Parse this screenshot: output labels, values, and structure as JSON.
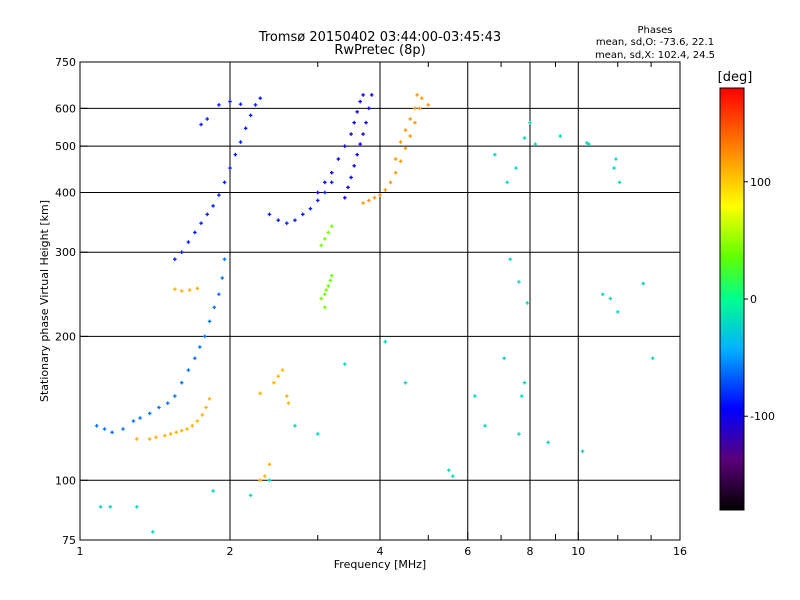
{
  "chart_data": {
    "type": "scatter",
    "title": "Tromsø 20150402 03:44:00-03:45:43",
    "subtitle": "RwPretec (8p)",
    "stats": {
      "heading": "Phases",
      "line1": "mean, sd,O: -73.6, 22.1",
      "line2": "mean, sd,X: 102.4, 24.5"
    },
    "xlabel": "Frequency [MHz]",
    "ylabel": "Stationary phase Virtual Height [km]",
    "x_scale": "log",
    "y_scale": "log",
    "xlim": [
      1,
      16
    ],
    "ylim": [
      75,
      750
    ],
    "grid": true,
    "x_ticks": [
      1,
      2,
      4,
      6,
      8,
      10,
      16
    ],
    "x_tick_labels": [
      "1",
      "2",
      "4",
      "6",
      "8",
      "10",
      "16"
    ],
    "x_minor_ticks": [
      3,
      5,
      7,
      9,
      12,
      14
    ],
    "y_ticks": [
      75,
      100,
      200,
      300,
      400,
      500,
      600,
      750
    ],
    "y_tick_labels": [
      "75",
      "100",
      "200",
      "300",
      "400",
      "500",
      "600",
      "750"
    ],
    "colorbar": {
      "label": "[deg]",
      "range": [
        -180,
        180
      ],
      "ticks": [
        100,
        0,
        -100
      ],
      "tick_labels": [
        "100",
        "0",
        "-100"
      ]
    },
    "series": [
      {
        "trace": "low-E cusp, X (orange)",
        "points": [
          [
            1.42,
            123
          ],
          [
            1.48,
            124
          ],
          [
            1.52,
            125
          ],
          [
            1.56,
            126
          ],
          [
            1.6,
            127
          ],
          [
            1.64,
            128
          ],
          [
            1.68,
            130
          ],
          [
            1.72,
            133
          ],
          [
            1.76,
            137
          ],
          [
            1.79,
            142
          ],
          [
            1.82,
            148
          ],
          [
            1.55,
            251
          ],
          [
            1.6,
            249
          ],
          [
            1.66,
            250
          ],
          [
            1.72,
            252
          ],
          [
            2.35,
            102
          ],
          [
            2.4,
            108
          ],
          [
            2.45,
            160
          ],
          [
            2.5,
            165
          ],
          [
            2.55,
            170
          ],
          [
            2.6,
            150
          ],
          [
            2.62,
            145
          ],
          [
            2.3,
            100
          ],
          [
            2.3,
            152
          ],
          [
            1.3,
            122
          ],
          [
            1.38,
            122
          ]
        ],
        "phase": 110
      },
      {
        "trace": "low-E cusp, O (cyan)",
        "points": [
          [
            1.08,
            130
          ],
          [
            1.12,
            128
          ],
          [
            1.16,
            126
          ],
          [
            1.22,
            128
          ],
          [
            1.28,
            133
          ],
          [
            1.32,
            135
          ],
          [
            1.38,
            138
          ],
          [
            1.44,
            142
          ],
          [
            1.5,
            145
          ],
          [
            1.55,
            150
          ],
          [
            1.6,
            160
          ],
          [
            1.65,
            170
          ],
          [
            1.7,
            180
          ],
          [
            1.74,
            190
          ],
          [
            1.78,
            200
          ],
          [
            1.82,
            215
          ],
          [
            1.86,
            230
          ],
          [
            1.9,
            245
          ],
          [
            1.93,
            265
          ],
          [
            1.95,
            290
          ]
        ],
        "phase": -60
      },
      {
        "trace": "F1/F2 low trace, O (blue/cyan)",
        "points": [
          [
            1.55,
            290
          ],
          [
            1.6,
            300
          ],
          [
            1.65,
            315
          ],
          [
            1.7,
            330
          ],
          [
            1.75,
            345
          ],
          [
            1.8,
            360
          ],
          [
            1.85,
            375
          ],
          [
            1.9,
            395
          ],
          [
            1.95,
            420
          ],
          [
            2.0,
            450
          ],
          [
            2.05,
            480
          ],
          [
            2.1,
            510
          ],
          [
            2.15,
            545
          ],
          [
            2.2,
            580
          ],
          [
            2.25,
            610
          ],
          [
            2.3,
            630
          ],
          [
            1.75,
            555
          ],
          [
            1.8,
            570
          ],
          [
            1.9,
            610
          ],
          [
            2.0,
            620
          ],
          [
            2.1,
            612
          ],
          [
            2.4,
            360
          ],
          [
            2.5,
            350
          ],
          [
            2.6,
            345
          ],
          [
            2.7,
            350
          ],
          [
            2.8,
            360
          ],
          [
            2.9,
            370
          ],
          [
            3.0,
            385
          ],
          [
            3.1,
            400
          ],
          [
            3.2,
            420
          ]
        ],
        "phase": -85
      },
      {
        "trace": "F2 upper trace, O (blue)",
        "points": [
          [
            3.0,
            400
          ],
          [
            3.1,
            420
          ],
          [
            3.2,
            440
          ],
          [
            3.3,
            470
          ],
          [
            3.4,
            500
          ],
          [
            3.5,
            530
          ],
          [
            3.55,
            560
          ],
          [
            3.6,
            590
          ],
          [
            3.65,
            620
          ],
          [
            3.7,
            640
          ],
          [
            3.4,
            390
          ],
          [
            3.45,
            410
          ],
          [
            3.5,
            430
          ],
          [
            3.55,
            455
          ],
          [
            3.6,
            480
          ],
          [
            3.65,
            505
          ],
          [
            3.7,
            530
          ],
          [
            3.75,
            560
          ],
          [
            3.8,
            600
          ],
          [
            3.85,
            640
          ]
        ],
        "phase": -100
      },
      {
        "trace": "X mode upper, F2 (yellow/orange)",
        "points": [
          [
            3.7,
            380
          ],
          [
            3.8,
            385
          ],
          [
            3.9,
            390
          ],
          [
            4.0,
            395
          ],
          [
            4.1,
            405
          ],
          [
            4.2,
            420
          ],
          [
            4.3,
            440
          ],
          [
            4.4,
            465
          ],
          [
            4.5,
            495
          ],
          [
            4.6,
            525
          ],
          [
            4.7,
            560
          ],
          [
            4.8,
            600
          ],
          [
            4.85,
            630
          ],
          [
            4.3,
            470
          ],
          [
            4.4,
            510
          ],
          [
            4.5,
            540
          ],
          [
            4.6,
            570
          ],
          [
            4.7,
            600
          ],
          [
            4.75,
            640
          ],
          [
            5.0,
            610
          ]
        ],
        "phase": 120
      },
      {
        "trace": "mid-height trace (green/yellow)",
        "points": [
          [
            3.05,
            240
          ],
          [
            3.1,
            245
          ],
          [
            3.12,
            250
          ],
          [
            3.15,
            255
          ],
          [
            3.18,
            262
          ],
          [
            3.2,
            268
          ],
          [
            3.1,
            230
          ],
          [
            3.05,
            310
          ],
          [
            3.1,
            320
          ],
          [
            3.15,
            330
          ],
          [
            3.2,
            340
          ]
        ],
        "phase": 40
      },
      {
        "trace": "scattered points",
        "points": [
          [
            1.1,
            88
          ],
          [
            1.15,
            88
          ],
          [
            1.3,
            88
          ],
          [
            1.4,
            78
          ],
          [
            1.85,
            95
          ],
          [
            2.2,
            93
          ],
          [
            2.4,
            100
          ],
          [
            2.7,
            130
          ],
          [
            3.0,
            125
          ],
          [
            3.4,
            175
          ],
          [
            4.1,
            195
          ],
          [
            4.5,
            160
          ],
          [
            5.5,
            105
          ],
          [
            5.6,
            102
          ],
          [
            6.2,
            150
          ],
          [
            6.5,
            130
          ],
          [
            7.1,
            180
          ],
          [
            7.6,
            125
          ],
          [
            7.7,
            150
          ],
          [
            7.8,
            160
          ],
          [
            8.7,
            120
          ],
          [
            10.2,
            115
          ],
          [
            11.2,
            245
          ],
          [
            11.6,
            240
          ],
          [
            12.0,
            225
          ],
          [
            13.5,
            258
          ],
          [
            14.1,
            180
          ],
          [
            7.3,
            290
          ],
          [
            7.6,
            260
          ],
          [
            7.9,
            235
          ],
          [
            6.8,
            480
          ],
          [
            7.5,
            450
          ],
          [
            7.8,
            520
          ],
          [
            8.2,
            505
          ],
          [
            9.2,
            525
          ],
          [
            10.4,
            508
          ],
          [
            10.5,
            505
          ],
          [
            11.8,
            450
          ],
          [
            11.9,
            470
          ],
          [
            12.1,
            420
          ],
          [
            7.2,
            420
          ],
          [
            8.0,
            560
          ]
        ],
        "phase": -20
      }
    ]
  }
}
